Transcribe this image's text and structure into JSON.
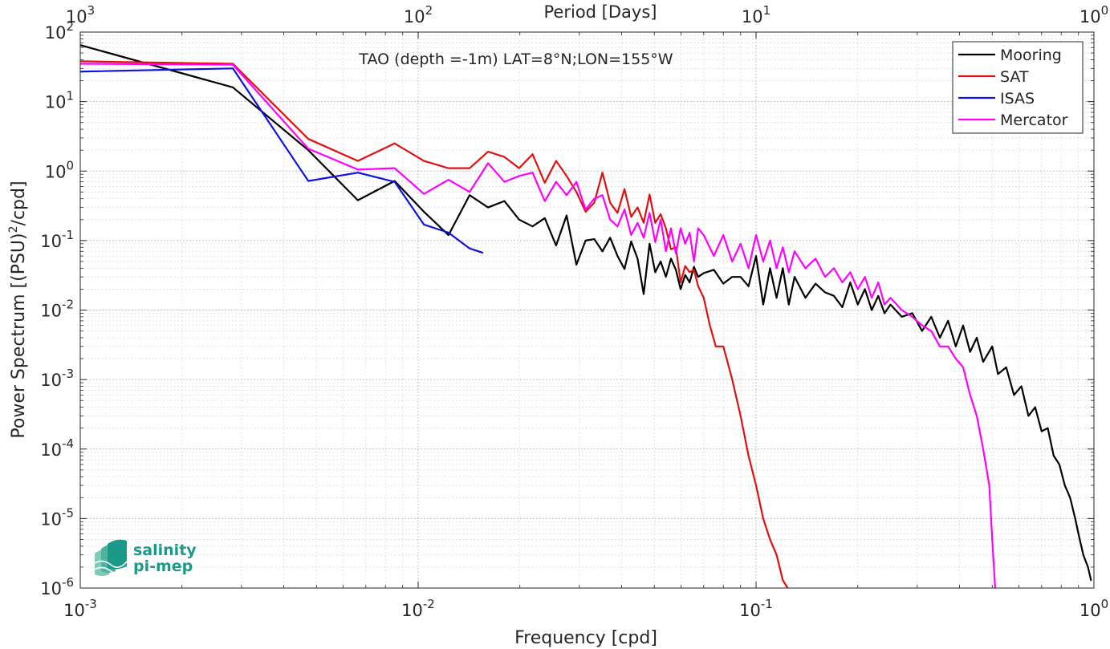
{
  "chart_data": {
    "type": "line",
    "title": "TAO (depth =-1m) LAT=8°N;LON=155°W",
    "xlabel": "Frequency [cpd]",
    "ylabel": "Power Spectrum [(PSU)",
    "ylabel_sup": "2",
    "ylabel_tail": "/cpd]",
    "top_xlabel": "Period [Days]",
    "xscale": "log",
    "yscale": "log",
    "xlim": [
      0.001,
      1
    ],
    "ylim": [
      1e-06,
      100
    ],
    "grid": true,
    "legend_position": "top-right",
    "x_ticks": [
      {
        "value": 0.001,
        "base": "10",
        "exp": "-3"
      },
      {
        "value": 0.01,
        "base": "10",
        "exp": "-2"
      },
      {
        "value": 0.1,
        "base": "10",
        "exp": "-1"
      },
      {
        "value": 1,
        "base": "10",
        "exp": "0"
      }
    ],
    "top_ticks": [
      {
        "value": 0.001,
        "base": "10",
        "exp": "3"
      },
      {
        "value": 0.01,
        "base": "10",
        "exp": "2"
      },
      {
        "value": 0.1,
        "base": "10",
        "exp": "1"
      },
      {
        "value": 1,
        "base": "10",
        "exp": "0"
      }
    ],
    "y_ticks": [
      {
        "value": 1e-06,
        "base": "10",
        "exp": "-6"
      },
      {
        "value": 1e-05,
        "base": "10",
        "exp": "-5"
      },
      {
        "value": 0.0001,
        "base": "10",
        "exp": "-4"
      },
      {
        "value": 0.001,
        "base": "10",
        "exp": "-3"
      },
      {
        "value": 0.01,
        "base": "10",
        "exp": "-2"
      },
      {
        "value": 0.1,
        "base": "10",
        "exp": "-1"
      },
      {
        "value": 1,
        "base": "10",
        "exp": "0"
      },
      {
        "value": 10,
        "base": "10",
        "exp": "1"
      },
      {
        "value": 100,
        "base": "10",
        "exp": "2"
      }
    ],
    "series": [
      {
        "name": "Mooring",
        "color": "#000000",
        "x": [
          0.001,
          0.00283,
          0.00473,
          0.00663,
          0.00852,
          0.0104,
          0.0123,
          0.0142,
          0.0161,
          0.018,
          0.0199,
          0.0218,
          0.0237,
          0.0256,
          0.0275,
          0.0294,
          0.0313,
          0.0332,
          0.0351,
          0.037,
          0.0389,
          0.0408,
          0.0427,
          0.0446,
          0.0465,
          0.0484,
          0.0503,
          0.0522,
          0.0541,
          0.056,
          0.0579,
          0.0598,
          0.0617,
          0.0636,
          0.0655,
          0.0674,
          0.07,
          0.075,
          0.08,
          0.085,
          0.09,
          0.095,
          0.1,
          0.105,
          0.11,
          0.115,
          0.12,
          0.125,
          0.13,
          0.14,
          0.15,
          0.16,
          0.17,
          0.18,
          0.19,
          0.2,
          0.21,
          0.22,
          0.23,
          0.24,
          0.25,
          0.27,
          0.29,
          0.31,
          0.33,
          0.35,
          0.37,
          0.39,
          0.41,
          0.43,
          0.45,
          0.47,
          0.5,
          0.52,
          0.55,
          0.58,
          0.61,
          0.64,
          0.67,
          0.7,
          0.73,
          0.76,
          0.79,
          0.82,
          0.85,
          0.88,
          0.9,
          0.93,
          0.96,
          0.98
        ],
        "y": [
          65,
          16,
          2,
          0.38,
          0.72,
          0.26,
          0.12,
          0.45,
          0.3,
          0.37,
          0.2,
          0.16,
          0.21,
          0.085,
          0.23,
          0.045,
          0.1,
          0.105,
          0.07,
          0.11,
          0.06,
          0.039,
          0.097,
          0.055,
          0.017,
          0.09,
          0.035,
          0.05,
          0.03,
          0.055,
          0.038,
          0.02,
          0.032,
          0.025,
          0.042,
          0.03,
          0.034,
          0.038,
          0.024,
          0.03,
          0.03,
          0.022,
          0.06,
          0.012,
          0.04,
          0.015,
          0.04,
          0.012,
          0.03,
          0.015,
          0.024,
          0.018,
          0.016,
          0.011,
          0.025,
          0.012,
          0.02,
          0.01,
          0.016,
          0.009,
          0.012,
          0.008,
          0.009,
          0.005,
          0.008,
          0.004,
          0.007,
          0.003,
          0.006,
          0.0025,
          0.004,
          0.0018,
          0.003,
          0.0012,
          0.0015,
          0.0006,
          0.0008,
          0.0003,
          0.0004,
          0.00018,
          0.0002,
          8e-05,
          6e-05,
          3e-05,
          2e-05,
          1e-05,
          6e-06,
          3e-06,
          2e-06,
          1.3e-06
        ]
      },
      {
        "name": "SAT",
        "color": "#e01010",
        "x": [
          0.001,
          0.00283,
          0.00473,
          0.00663,
          0.00852,
          0.0104,
          0.0123,
          0.0142,
          0.0161,
          0.018,
          0.0199,
          0.0218,
          0.0237,
          0.0256,
          0.0275,
          0.0294,
          0.0313,
          0.0332,
          0.0351,
          0.037,
          0.0389,
          0.0408,
          0.0427,
          0.0446,
          0.0465,
          0.0484,
          0.0503,
          0.0522,
          0.0541,
          0.056,
          0.0579,
          0.0598,
          0.0617,
          0.0636,
          0.0655,
          0.0674,
          0.07,
          0.073,
          0.076,
          0.08,
          0.085,
          0.09,
          0.095,
          0.1,
          0.105,
          0.11,
          0.115,
          0.12,
          0.124
        ],
        "y": [
          38,
          35,
          2.9,
          1.4,
          2.5,
          1.4,
          1.1,
          1.1,
          1.9,
          1.6,
          1.1,
          1.75,
          0.68,
          1.4,
          0.85,
          0.5,
          0.26,
          0.35,
          0.95,
          0.35,
          0.25,
          0.55,
          0.22,
          0.3,
          0.18,
          0.46,
          0.18,
          0.24,
          0.15,
          0.075,
          0.08,
          0.025,
          0.043,
          0.035,
          0.038,
          0.022,
          0.015,
          0.006,
          0.003,
          0.003,
          0.001,
          0.0003,
          8e-05,
          3e-05,
          1e-05,
          5e-06,
          3e-06,
          1.3e-06,
          1e-06
        ]
      },
      {
        "name": "ISAS",
        "color": "#1010e0",
        "x": [
          0.001,
          0.00283,
          0.00473,
          0.00663,
          0.00852,
          0.0104,
          0.0123,
          0.0142,
          0.0155
        ],
        "y": [
          27,
          30,
          0.72,
          0.95,
          0.7,
          0.17,
          0.13,
          0.077,
          0.067
        ]
      },
      {
        "name": "Mercator",
        "color": "#ff00ff",
        "x": [
          0.001,
          0.00283,
          0.00473,
          0.00663,
          0.00852,
          0.0104,
          0.0123,
          0.0142,
          0.0161,
          0.018,
          0.0199,
          0.0218,
          0.0237,
          0.0256,
          0.0275,
          0.0294,
          0.0313,
          0.0332,
          0.0351,
          0.037,
          0.0389,
          0.0408,
          0.0427,
          0.0446,
          0.0465,
          0.0484,
          0.0503,
          0.0522,
          0.0541,
          0.056,
          0.0579,
          0.0598,
          0.0617,
          0.0636,
          0.0655,
          0.0674,
          0.07,
          0.075,
          0.08,
          0.085,
          0.09,
          0.095,
          0.1,
          0.105,
          0.11,
          0.115,
          0.12,
          0.125,
          0.13,
          0.14,
          0.15,
          0.16,
          0.17,
          0.18,
          0.19,
          0.2,
          0.21,
          0.22,
          0.23,
          0.24,
          0.25,
          0.27,
          0.29,
          0.31,
          0.33,
          0.35,
          0.37,
          0.39,
          0.41,
          0.43,
          0.45,
          0.47,
          0.49,
          0.5,
          0.51
        ],
        "y": [
          35,
          34,
          2.1,
          1.05,
          1.1,
          0.47,
          0.75,
          0.5,
          1.3,
          0.7,
          0.85,
          0.95,
          0.37,
          0.7,
          0.45,
          0.7,
          0.28,
          0.4,
          0.45,
          0.2,
          0.16,
          0.28,
          0.12,
          0.18,
          0.11,
          0.25,
          0.095,
          0.2,
          0.07,
          0.15,
          0.065,
          0.15,
          0.09,
          0.13,
          0.05,
          0.15,
          0.12,
          0.06,
          0.12,
          0.05,
          0.09,
          0.04,
          0.12,
          0.05,
          0.1,
          0.04,
          0.08,
          0.035,
          0.07,
          0.04,
          0.055,
          0.03,
          0.04,
          0.025,
          0.035,
          0.02,
          0.03,
          0.015,
          0.025,
          0.012,
          0.015,
          0.01,
          0.008,
          0.006,
          0.005,
          0.003,
          0.003,
          0.002,
          0.0015,
          0.0006,
          0.0003,
          0.0001,
          3e-05,
          5e-06,
          1e-06
        ]
      }
    ]
  },
  "logo": {
    "line1": "salinity",
    "line2": "pi-mep",
    "color": "#1b9a8a"
  }
}
